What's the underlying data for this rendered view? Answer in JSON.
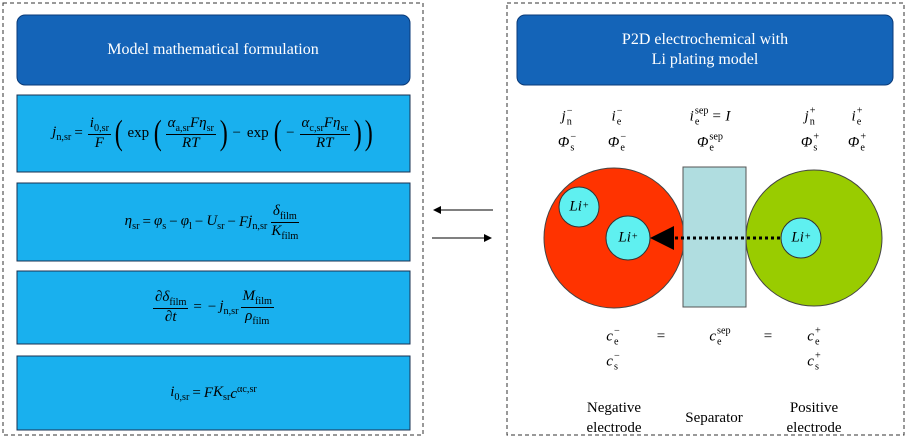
{
  "left_panel": {
    "title": "Model mathematical formulation",
    "equations": [
      {
        "parts": [
          {
            "t": "j",
            "sub": "n,sr"
          },
          {
            "t": "="
          },
          {
            "num": [
              {
                "t": "i",
                "sub": "0,sr"
              }
            ],
            "den": [
              {
                "t": "F"
              }
            ]
          },
          {
            "t": "("
          },
          {
            "t": "exp"
          },
          {
            "t": "("
          },
          {
            "num": [
              {
                "t": "α",
                "sub": "a,sr"
              },
              {
                "t": "F"
              },
              {
                "t": "η",
                "sub": "sr"
              }
            ],
            "den": [
              {
                "t": "RT"
              }
            ]
          },
          {
            "t": ")"
          },
          {
            "t": "−"
          },
          {
            "t": "exp"
          },
          {
            "t": "("
          },
          {
            "t": "−"
          },
          {
            "num": [
              {
                "t": "α",
                "sub": "c,sr"
              },
              {
                "t": "F"
              },
              {
                "t": "η",
                "sub": "sr"
              }
            ],
            "den": [
              {
                "t": "RT"
              }
            ]
          },
          {
            "t": ")"
          },
          {
            "t": ")"
          }
        ]
      },
      {
        "parts": [
          {
            "t": "η",
            "sub": "sr"
          },
          {
            "t": "="
          },
          {
            "t": "φ",
            "sub": "s"
          },
          {
            "t": "−"
          },
          {
            "t": "φ",
            "sub": "l"
          },
          {
            "t": "−"
          },
          {
            "t": "U",
            "sub": "sr"
          },
          {
            "t": "−"
          },
          {
            "t": "F"
          },
          {
            "t": "j",
            "sub": "n,sr"
          },
          {
            "num": [
              {
                "t": "δ",
                "sub": "film"
              }
            ],
            "den": [
              {
                "t": "K",
                "sub": "film"
              }
            ]
          }
        ]
      },
      {
        "parts": [
          {
            "num": [
              {
                "t": "∂δ",
                "sub": "film"
              }
            ],
            "den": [
              {
                "t": "∂t"
              }
            ]
          },
          {
            "t": "="
          },
          {
            "t": "−"
          },
          {
            "t": "j",
            "sub": "n,sr"
          },
          {
            "num": [
              {
                "t": "M",
                "sub": "film"
              }
            ],
            "den": [
              {
                "t": "ρ",
                "sub": "film"
              }
            ]
          }
        ]
      },
      {
        "parts": [
          {
            "t": "i",
            "sub": "0,sr"
          },
          {
            "t": "="
          },
          {
            "t": "F"
          },
          {
            "t": "K",
            "sub": "sr"
          },
          {
            "t": "c",
            "sup": "αc,sr"
          }
        ]
      }
    ]
  },
  "right_panel": {
    "title_lines": [
      "P2D electrochemical with",
      "Li plating model"
    ],
    "symbols": [
      {
        "t": "j",
        "sup": "−",
        "sub": "n"
      },
      {
        "t": "i",
        "sup": "−",
        "sub": "e"
      },
      {
        "t": "i",
        "sup": "sep",
        "sub": "e",
        "rest": "= I"
      },
      {
        "t": "j",
        "sup": "+",
        "sub": "n"
      },
      {
        "t": "i",
        "sup": "+",
        "sub": "e"
      },
      {
        "t": "Φ",
        "sup": "−",
        "sub": "s"
      },
      {
        "t": "Φ",
        "sup": "−",
        "sub": "e"
      },
      {
        "t": "Φ",
        "sup": "sep",
        "sub": "e"
      },
      {
        "t": "Φ",
        "sup": "+",
        "sub": "s"
      },
      {
        "t": "Φ",
        "sup": "+",
        "sub": "e"
      },
      {
        "t": "c",
        "sup": "−",
        "sub": "e"
      },
      {
        "t": "="
      },
      {
        "t": "c",
        "sup": "sep",
        "sub": "e"
      },
      {
        "t": "="
      },
      {
        "t": "c",
        "sup": "+",
        "sub": "e"
      },
      {
        "t": "c",
        "sup": "−",
        "sub": "s"
      },
      {
        "t": "c",
        "sup": "+",
        "sub": "s"
      }
    ],
    "ions": [
      {
        "t": "Li",
        "sup": "+"
      },
      {
        "t": "Li",
        "sup": "+"
      },
      {
        "t": "Li",
        "sup": "+"
      }
    ],
    "regions": [
      [
        "Negative",
        "electrode"
      ],
      [
        "Separator"
      ],
      [
        "Positive",
        "electrode"
      ]
    ]
  }
}
